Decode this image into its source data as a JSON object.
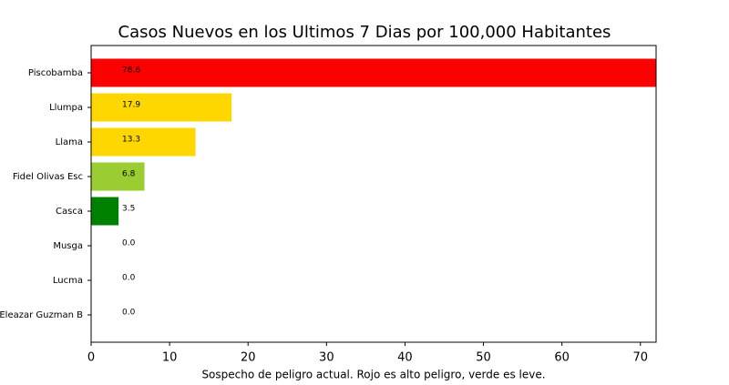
{
  "chart_data": {
    "type": "barh",
    "title": "Casos Nuevos en los Ultimos 7 Dias por 100,000 Habitantes",
    "xlabel": "Sospecho de peligro actual. Rojo es alto peligro, verde es leve.",
    "categories": [
      "Piscobamba",
      "Llumpa",
      "Llama",
      "Fidel Olivas Esc",
      "Casca",
      "Musga",
      "Lucma",
      "Eleazar Guzman B"
    ],
    "values": [
      78.6,
      17.9,
      13.3,
      6.8,
      3.5,
      0.0,
      0.0,
      0.0
    ],
    "value_labels": [
      "78.6",
      "17.9",
      "13.3",
      "6.8",
      "3.5",
      "0.0",
      "0.0",
      "0.0"
    ],
    "colors": [
      "#ff0000",
      "#ffd700",
      "#ffd700",
      "#9acd32",
      "#008000",
      "#008000",
      "#008000",
      "#008000"
    ],
    "xlim": [
      0,
      72
    ],
    "xticks": [
      0,
      10,
      20,
      30,
      40,
      50,
      60,
      70
    ],
    "grid": false
  }
}
